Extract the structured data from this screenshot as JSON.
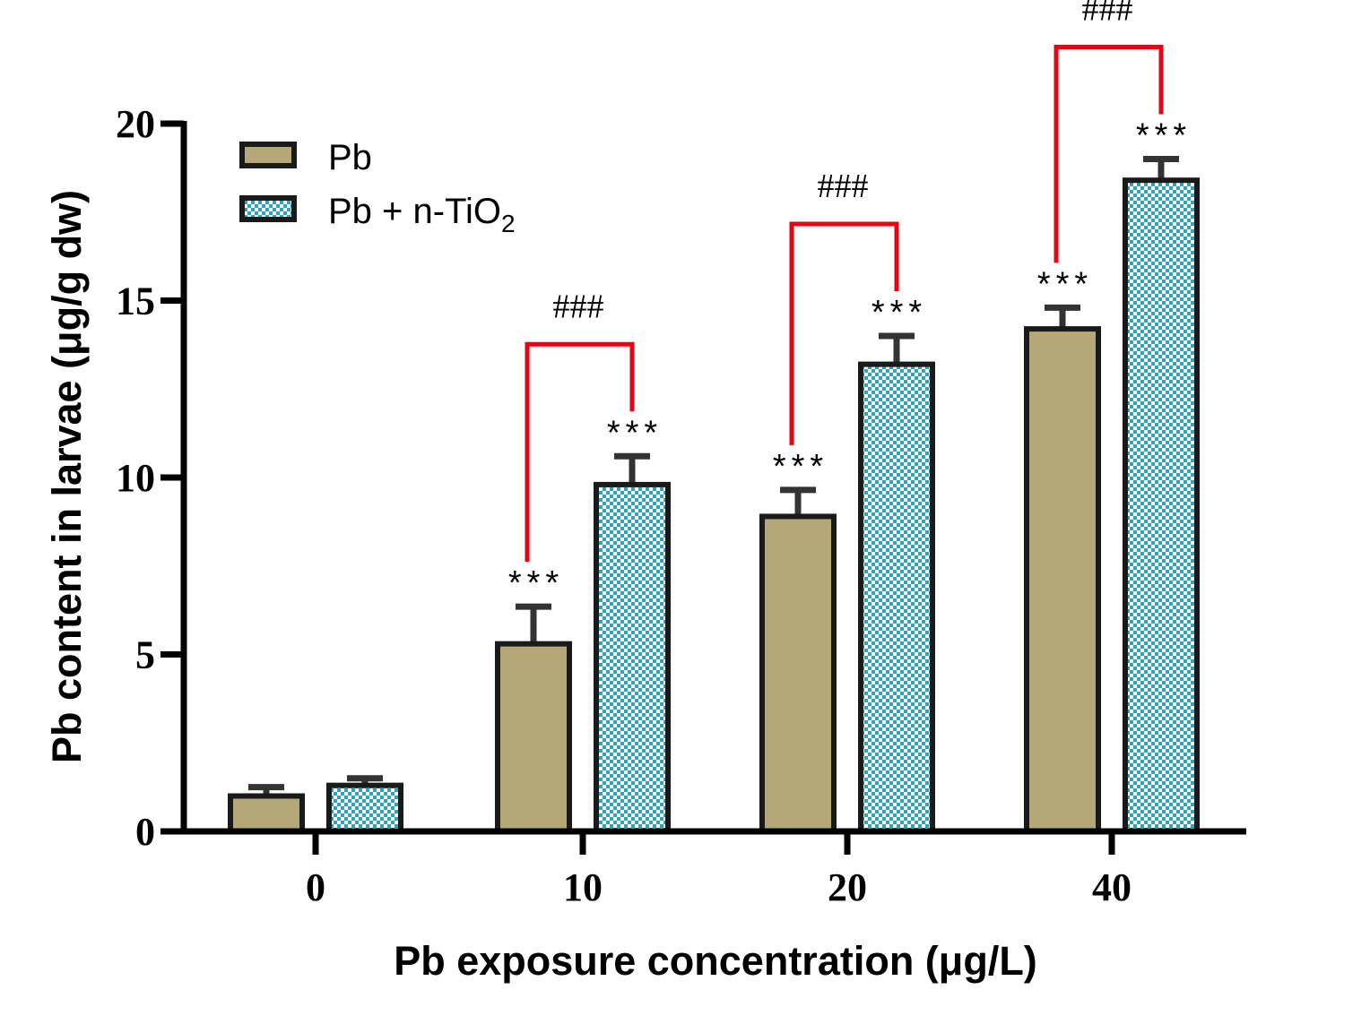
{
  "chart_data": {
    "type": "bar",
    "title": "",
    "xlabel": "Pb exposure concentration (μg/L)",
    "ylabel": "Pb content in larvae (μg/g dw)",
    "ylim": [
      0,
      20
    ],
    "yticks": [
      0,
      5,
      10,
      15,
      20
    ],
    "categories": [
      "0",
      "10",
      "20",
      "40"
    ],
    "series": [
      {
        "name": "Pb",
        "legend_main": "Pb",
        "legend_sub": "",
        "color": "#b5a878",
        "pattern": "solid",
        "values": [
          1.0,
          5.3,
          8.9,
          14.2
        ],
        "errors": [
          0.25,
          1.05,
          0.75,
          0.6
        ],
        "significance": [
          "",
          "***",
          "***",
          "***"
        ]
      },
      {
        "name": "Pb + n-TiO2",
        "legend_main": "Pb + n-TiO",
        "legend_sub": "2",
        "color": "#2aa6b5",
        "pattern": "checkerboard",
        "values": [
          1.3,
          9.8,
          13.2,
          18.4
        ],
        "errors": [
          0.2,
          0.8,
          0.8,
          0.6
        ],
        "significance": [
          "",
          "***",
          "***",
          "***"
        ]
      }
    ],
    "comparisons": [
      {
        "category": "10",
        "label": "###"
      },
      {
        "category": "20",
        "label": "###"
      },
      {
        "category": "40",
        "label": "###"
      }
    ],
    "legend_position": "top-left",
    "grid": false,
    "colors": {
      "axis": "#000000",
      "bar_outline": "#1a1a1a",
      "error_bar": "#333333",
      "bracket": "#e30613"
    }
  }
}
